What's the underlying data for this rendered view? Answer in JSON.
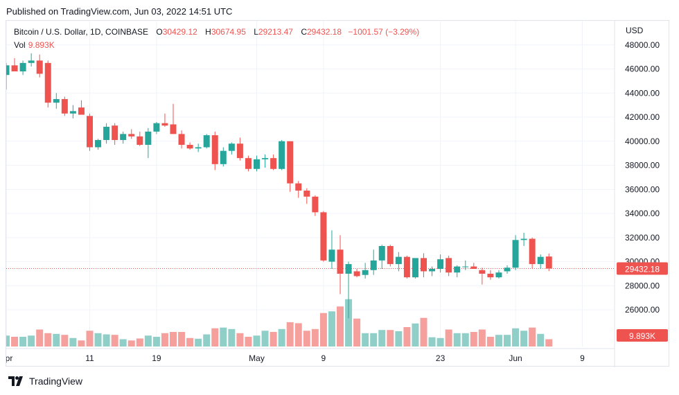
{
  "published": "Published on TradingView.com, Jun 03, 2022 14:51 UTC",
  "legend": {
    "symbol": "Bitcoin / U.S. Dollar, 1D, COINBASE",
    "o_label": "O",
    "o_value": "30429.12",
    "h_label": "H",
    "h_value": "30674.95",
    "l_label": "L",
    "l_value": "29213.47",
    "c_label": "C",
    "c_value": "29432.18",
    "change": "−1001.57 (−3.29%)",
    "vol_label": "Vol",
    "vol_value": "9.893K"
  },
  "footer": {
    "brand": "TradingView"
  },
  "colors": {
    "up": "#26a69a",
    "down": "#ef5350",
    "up_vol": "#8fcfc8",
    "down_vol": "#f5a09d",
    "grid": "#f0f3fa",
    "axis_text": "#131722"
  },
  "chart_data": {
    "type": "candlestick",
    "title": "Bitcoin / U.S. Dollar, 1D, COINBASE",
    "currency": "USD",
    "y_range": [
      23000,
      50000
    ],
    "y_ticks": [
      "26000.00",
      "28000.00",
      "30000.00",
      "32000.00",
      "34000.00",
      "36000.00",
      "38000.00",
      "40000.00",
      "42000.00",
      "44000.00",
      "46000.00",
      "48000.00"
    ],
    "x_ticks": [
      {
        "label": "Apr",
        "day": 0
      },
      {
        "label": "11",
        "day": 10
      },
      {
        "label": "19",
        "day": 18
      },
      {
        "label": "May",
        "day": 30
      },
      {
        "label": "9",
        "day": 38
      },
      {
        "label": "23",
        "day": 52
      },
      {
        "label": "Jun",
        "day": 61
      },
      {
        "label": "9",
        "day": 69
      }
    ],
    "last_price_label": "29432.18",
    "last_price": 29432.18,
    "volume_label": "9.893K",
    "candles": [
      [
        0,
        45500,
        46500,
        44300,
        46300,
        0.45
      ],
      [
        1,
        46300,
        46900,
        45800,
        45800,
        0.4
      ],
      [
        2,
        45800,
        46700,
        45500,
        46500,
        0.4
      ],
      [
        3,
        46500,
        47300,
        46200,
        46700,
        0.45
      ],
      [
        4,
        46700,
        47200,
        45300,
        45600,
        0.7
      ],
      [
        5,
        46500,
        46700,
        42800,
        43200,
        0.55
      ],
      [
        6,
        43200,
        44000,
        42700,
        43500,
        0.52
      ],
      [
        7,
        43500,
        43700,
        42100,
        42300,
        0.48
      ],
      [
        8,
        42300,
        43000,
        41900,
        42500,
        0.35
      ],
      [
        9,
        42800,
        43400,
        42300,
        42200,
        0.25
      ],
      [
        10,
        42100,
        42300,
        39200,
        39500,
        0.65
      ],
      [
        11,
        39500,
        40200,
        39300,
        40100,
        0.55
      ],
      [
        12,
        40100,
        41500,
        39800,
        41200,
        0.5
      ],
      [
        13,
        41300,
        41500,
        39700,
        40100,
        0.48
      ],
      [
        14,
        40100,
        40800,
        39800,
        40600,
        0.3
      ],
      [
        15,
        40600,
        41000,
        40200,
        40400,
        0.25
      ],
      [
        16,
        40400,
        40800,
        39600,
        39700,
        0.33
      ],
      [
        17,
        39700,
        41100,
        38600,
        40800,
        0.45
      ],
      [
        18,
        40800,
        41600,
        40600,
        41500,
        0.4
      ],
      [
        19,
        41500,
        42300,
        41200,
        41300,
        0.55
      ],
      [
        20,
        41400,
        43100,
        40800,
        40600,
        0.6
      ],
      [
        21,
        40600,
        40900,
        39400,
        39700,
        0.6
      ],
      [
        22,
        39700,
        39900,
        39300,
        39400,
        0.35
      ],
      [
        23,
        39400,
        39800,
        39100,
        39500,
        0.32
      ],
      [
        24,
        39500,
        40600,
        39400,
        40500,
        0.5
      ],
      [
        25,
        40500,
        40800,
        37600,
        38100,
        0.75
      ],
      [
        26,
        38100,
        39500,
        37900,
        39200,
        0.78
      ],
      [
        27,
        39200,
        39900,
        38900,
        39800,
        0.72
      ],
      [
        28,
        39800,
        40300,
        38400,
        38600,
        0.55
      ],
      [
        29,
        38600,
        38800,
        37500,
        37700,
        0.4
      ],
      [
        30,
        37700,
        38800,
        37500,
        38500,
        0.45
      ],
      [
        31,
        38500,
        38900,
        37800,
        38600,
        0.65
      ],
      [
        32,
        38600,
        38900,
        37600,
        37700,
        0.6
      ],
      [
        33,
        37700,
        40100,
        37600,
        40000,
        0.72
      ],
      [
        34,
        40000,
        40000,
        35800,
        36500,
        1.0
      ],
      [
        35,
        36500,
        36700,
        35300,
        35900,
        0.96
      ],
      [
        36,
        35900,
        36100,
        34800,
        35400,
        0.65
      ],
      [
        37,
        35400,
        35500,
        33800,
        34100,
        0.72
      ],
      [
        38,
        34100,
        34200,
        30000,
        30100,
        1.38
      ],
      [
        39,
        30000,
        32600,
        29400,
        31000,
        1.45
      ],
      [
        40,
        31000,
        32200,
        27300,
        29000,
        1.65
      ],
      [
        41,
        29000,
        30000,
        25300,
        29800,
        1.95
      ],
      [
        42,
        29200,
        29400,
        28700,
        28800,
        1.15
      ],
      [
        43,
        28900,
        29900,
        28600,
        29300,
        0.55
      ],
      [
        44,
        29300,
        31000,
        28900,
        30100,
        0.55
      ],
      [
        45,
        30100,
        31400,
        29400,
        31300,
        0.68
      ],
      [
        46,
        31300,
        31400,
        29600,
        29800,
        0.68
      ],
      [
        47,
        29800,
        30800,
        29200,
        30400,
        0.63
      ],
      [
        48,
        30400,
        30500,
        28600,
        28700,
        0.8
      ],
      [
        49,
        28700,
        30200,
        28600,
        30300,
        0.95
      ],
      [
        50,
        30300,
        30700,
        28700,
        29200,
        1.18
      ],
      [
        51,
        29200,
        29600,
        28800,
        29400,
        0.38
      ],
      [
        52,
        29400,
        30600,
        29100,
        30200,
        0.35
      ],
      [
        53,
        30300,
        30500,
        28800,
        29100,
        0.7
      ],
      [
        54,
        29100,
        29700,
        28700,
        29600,
        0.55
      ],
      [
        55,
        29600,
        30100,
        29300,
        29600,
        0.55
      ],
      [
        56,
        29600,
        29900,
        29400,
        29400,
        0.6
      ],
      [
        57,
        29300,
        29500,
        28100,
        29000,
        0.7
      ],
      [
        58,
        29000,
        29300,
        28500,
        28700,
        0.4
      ],
      [
        59,
        28700,
        29300,
        28600,
        29100,
        0.48
      ],
      [
        60,
        29200,
        29700,
        29000,
        29500,
        0.48
      ],
      [
        61,
        29500,
        32200,
        29300,
        31800,
        0.75
      ],
      [
        62,
        31800,
        32400,
        31300,
        31900,
        0.65
      ],
      [
        63,
        31900,
        32000,
        29400,
        29800,
        0.78
      ],
      [
        64,
        29800,
        30600,
        29400,
        30400,
        0.52
      ],
      [
        65,
        30429,
        30675,
        29213,
        29432,
        0.3
      ]
    ]
  }
}
